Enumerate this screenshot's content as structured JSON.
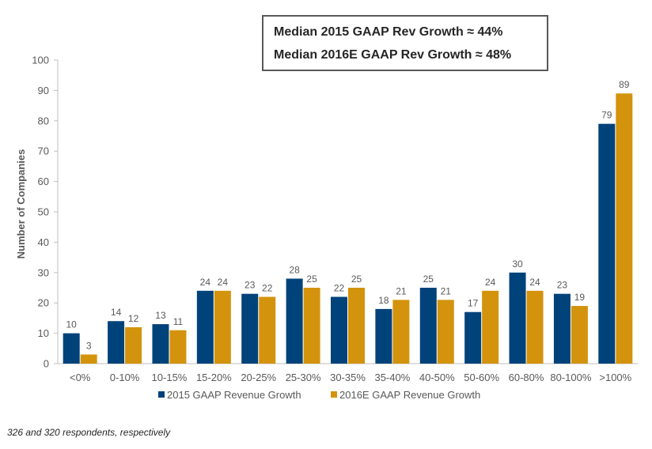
{
  "chart_data": {
    "type": "bar",
    "categories": [
      "<0%",
      "0-10%",
      "10-15%",
      "15-20%",
      "20-25%",
      "25-30%",
      "30-35%",
      "35-40%",
      "40-50%",
      "50-60%",
      "60-80%",
      "80-100%",
      ">100%"
    ],
    "series": [
      {
        "name": "2015 GAAP Revenue Growth",
        "color": "#00427A",
        "values": [
          10,
          14,
          13,
          24,
          23,
          28,
          22,
          18,
          25,
          17,
          30,
          23,
          79
        ]
      },
      {
        "name": "2016E GAAP Revenue Growth",
        "color": "#D4930C",
        "values": [
          3,
          12,
          11,
          24,
          22,
          25,
          25,
          21,
          21,
          24,
          24,
          19,
          89
        ]
      }
    ],
    "ylabel": "Number of Companies",
    "ylim": [
      0,
      100
    ],
    "yticks": [
      0,
      10,
      20,
      30,
      40,
      50,
      60,
      70,
      80,
      90,
      100
    ],
    "grid": false,
    "legend": "bottom"
  },
  "annotations": {
    "median_2015": "Median 2015 GAAP Rev Growth ≈ 44%",
    "median_2016": "Median 2016E GAAP Rev Growth ≈ 48%"
  },
  "footnote": "326 and 320 respondents, respectively"
}
